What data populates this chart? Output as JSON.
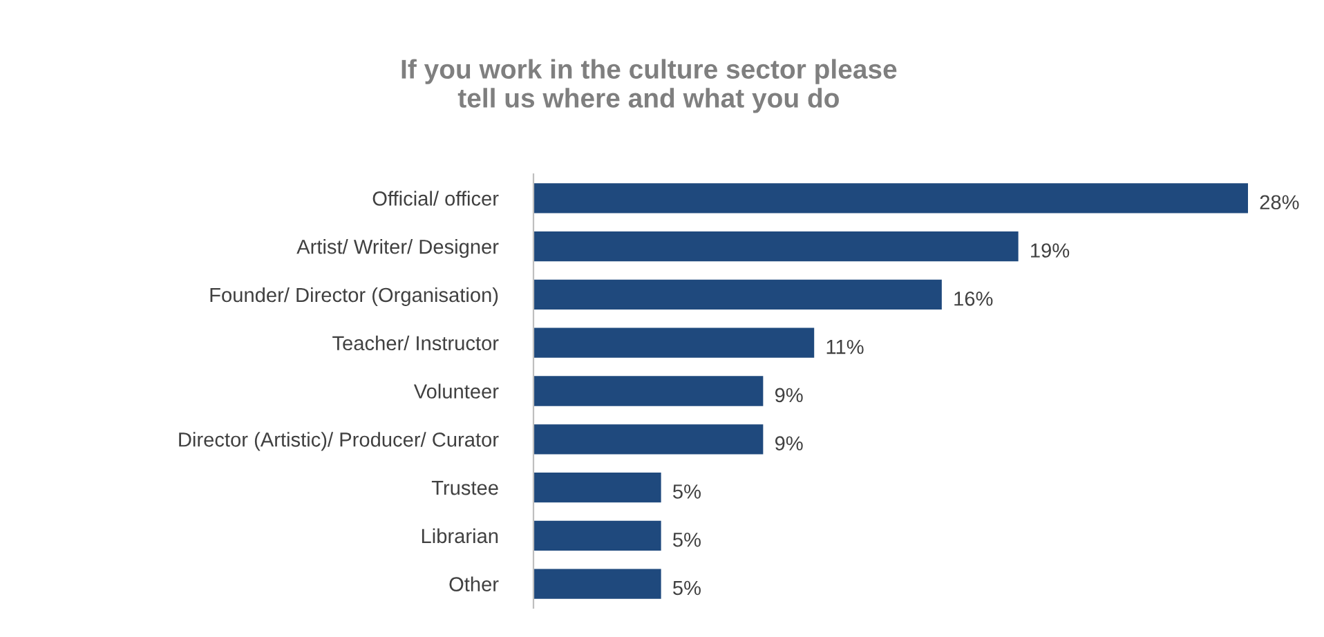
{
  "chart_data": {
    "type": "bar",
    "orientation": "horizontal",
    "title": "If you work in the culture sector please\ntell us where and what you do",
    "categories": [
      "Official/ officer",
      "Artist/ Writer/ Designer",
      "Founder/ Director (Organisation)",
      "Teacher/ Instructor",
      "Volunteer",
      "Director (Artistic)/ Producer/ Curator",
      "Trustee",
      "Librarian",
      "Other"
    ],
    "values": [
      28,
      19,
      16,
      11,
      9,
      9,
      5,
      5,
      5
    ],
    "value_labels": [
      "28%",
      "19%",
      "16%",
      "11%",
      "9%",
      "9%",
      "5%",
      "5%",
      "5%"
    ],
    "color": "#1f497d",
    "grid": false,
    "legend": false
  }
}
